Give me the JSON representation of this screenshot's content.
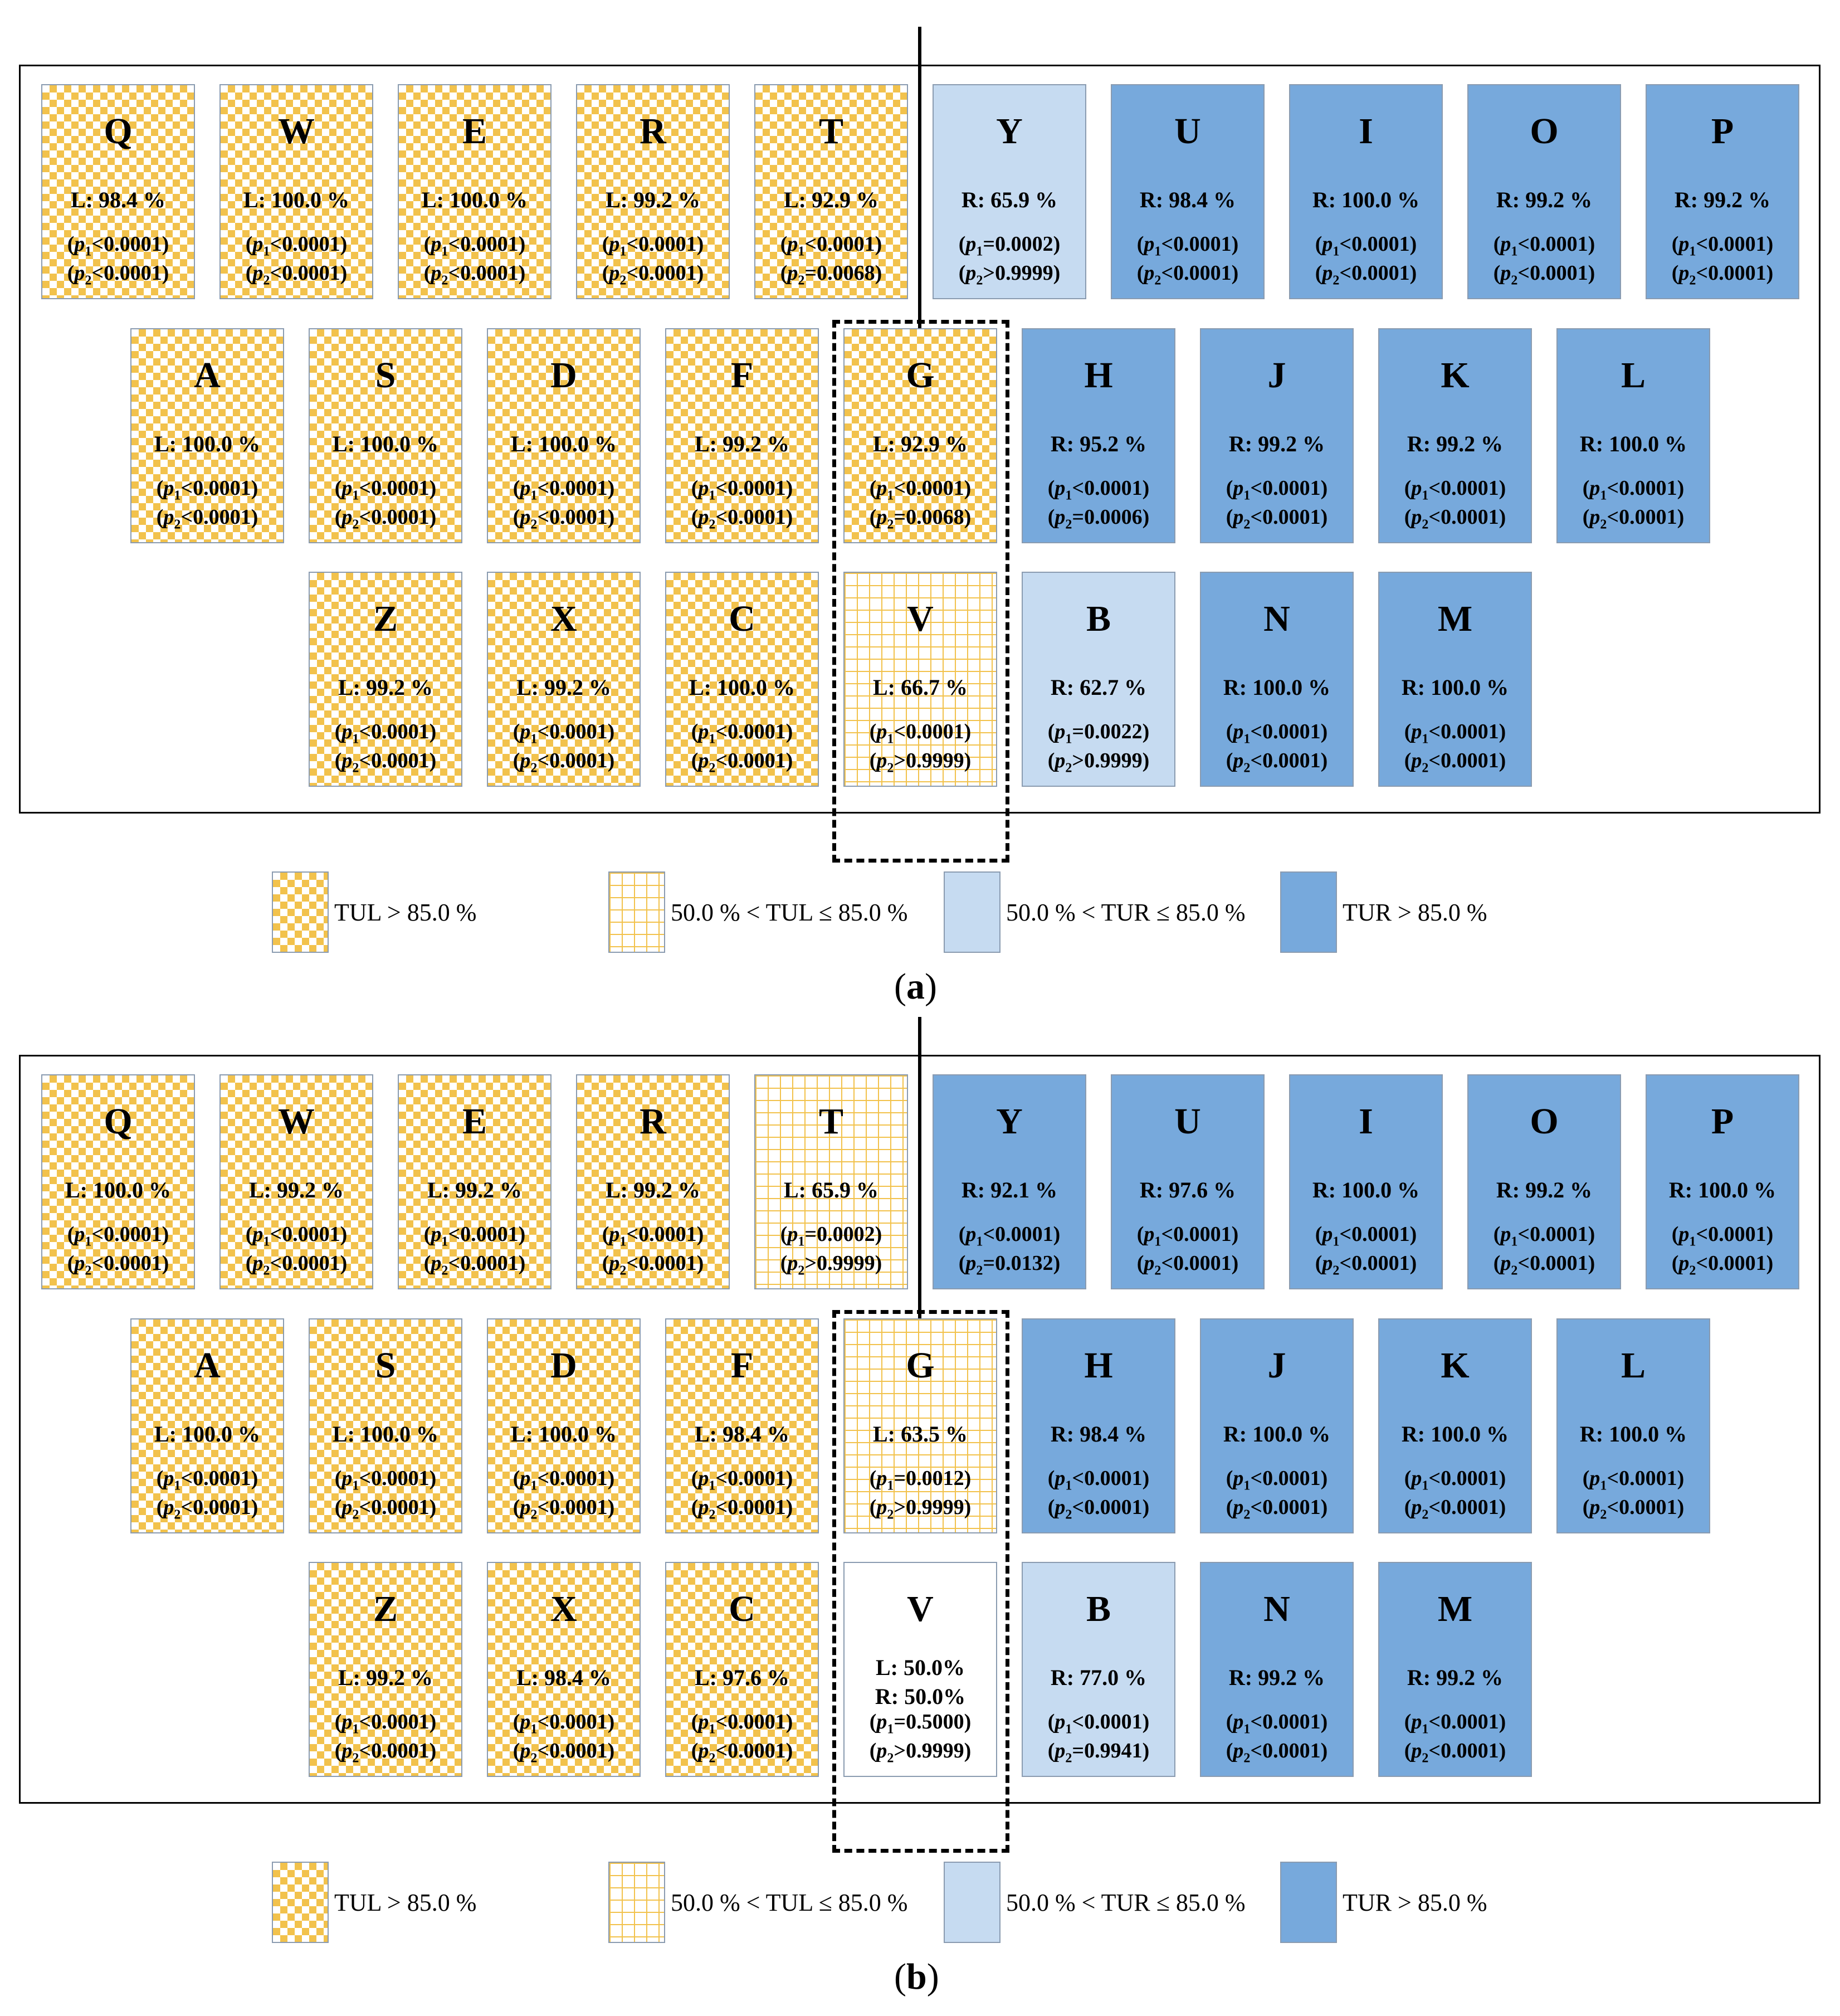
{
  "colors": {
    "tul_high": "#f2c24c",
    "tul_mid": "#f2c24c",
    "tur_mid": "#c6dbf1",
    "tur_high": "#77a9dc"
  },
  "legend": [
    {
      "label": "TUL > 85.0 %",
      "style": "tul-high"
    },
    {
      "label": "50.0 % < TUL ≤ 85.0 %",
      "style": "tul-mid"
    },
    {
      "label": "50.0 % < TUR ≤ 85.0 %",
      "style": "tur-mid"
    },
    {
      "label": "TUR > 85.0 %",
      "style": "tur-high"
    }
  ],
  "panels": [
    {
      "label": "a",
      "keys": [
        {
          "letter": "Q",
          "style": "tul-high",
          "pct": "L: 98.4 %",
          "p1_op": "<",
          "p1_val": "0.0001",
          "p2_op": "<",
          "p2_val": "0.0001"
        },
        {
          "letter": "W",
          "style": "tul-high",
          "pct": "L: 100.0 %",
          "p1_op": "<",
          "p1_val": "0.0001",
          "p2_op": "<",
          "p2_val": "0.0001"
        },
        {
          "letter": "E",
          "style": "tul-high",
          "pct": "L: 100.0 %",
          "p1_op": "<",
          "p1_val": "0.0001",
          "p2_op": "<",
          "p2_val": "0.0001"
        },
        {
          "letter": "R",
          "style": "tul-high",
          "pct": "L: 99.2 %",
          "p1_op": "<",
          "p1_val": "0.0001",
          "p2_op": "<",
          "p2_val": "0.0001"
        },
        {
          "letter": "T",
          "style": "tul-high",
          "pct": "L: 92.9 %",
          "p1_op": "<",
          "p1_val": "0.0001",
          "p2_op": "=",
          "p2_val": "0.0068"
        },
        {
          "letter": "Y",
          "style": "tur-mid",
          "pct": "R: 65.9 %",
          "p1_op": "=",
          "p1_val": "0.0002",
          "p2_op": ">",
          "p2_val": "0.9999"
        },
        {
          "letter": "U",
          "style": "tur-high",
          "pct": "R: 98.4 %",
          "p1_op": "<",
          "p1_val": "0.0001",
          "p2_op": "<",
          "p2_val": "0.0001"
        },
        {
          "letter": "I",
          "style": "tur-high",
          "pct": "R: 100.0 %",
          "p1_op": "<",
          "p1_val": "0.0001",
          "p2_op": "<",
          "p2_val": "0.0001"
        },
        {
          "letter": "O",
          "style": "tur-high",
          "pct": "R: 99.2 %",
          "p1_op": "<",
          "p1_val": "0.0001",
          "p2_op": "<",
          "p2_val": "0.0001"
        },
        {
          "letter": "P",
          "style": "tur-high",
          "pct": "R: 99.2 %",
          "p1_op": "<",
          "p1_val": "0.0001",
          "p2_op": "<",
          "p2_val": "0.0001"
        },
        {
          "letter": "A",
          "style": "tul-high",
          "pct": "L: 100.0 %",
          "p1_op": "<",
          "p1_val": "0.0001",
          "p2_op": "<",
          "p2_val": "0.0001"
        },
        {
          "letter": "S",
          "style": "tul-high",
          "pct": "L: 100.0 %",
          "p1_op": "<",
          "p1_val": "0.0001",
          "p2_op": "<",
          "p2_val": "0.0001"
        },
        {
          "letter": "D",
          "style": "tul-high",
          "pct": "L: 100.0 %",
          "p1_op": "<",
          "p1_val": "0.0001",
          "p2_op": "<",
          "p2_val": "0.0001"
        },
        {
          "letter": "F",
          "style": "tul-high",
          "pct": "L: 99.2 %",
          "p1_op": "<",
          "p1_val": "0.0001",
          "p2_op": "<",
          "p2_val": "0.0001"
        },
        {
          "letter": "G",
          "style": "tul-high",
          "pct": "L: 92.9 %",
          "p1_op": "<",
          "p1_val": "0.0001",
          "p2_op": "=",
          "p2_val": "0.0068"
        },
        {
          "letter": "H",
          "style": "tur-high",
          "pct": "R: 95.2 %",
          "p1_op": "<",
          "p1_val": "0.0001",
          "p2_op": "=",
          "p2_val": "0.0006"
        },
        {
          "letter": "J",
          "style": "tur-high",
          "pct": "R: 99.2 %",
          "p1_op": "<",
          "p1_val": "0.0001",
          "p2_op": "<",
          "p2_val": "0.0001"
        },
        {
          "letter": "K",
          "style": "tur-high",
          "pct": "R: 99.2 %",
          "p1_op": "<",
          "p1_val": "0.0001",
          "p2_op": "<",
          "p2_val": "0.0001"
        },
        {
          "letter": "L",
          "style": "tur-high",
          "pct": "R: 100.0 %",
          "p1_op": "<",
          "p1_val": "0.0001",
          "p2_op": "<",
          "p2_val": "0.0001"
        },
        {
          "letter": "Z",
          "style": "tul-high",
          "pct": "L: 99.2 %",
          "p1_op": "<",
          "p1_val": "0.0001",
          "p2_op": "<",
          "p2_val": "0.0001"
        },
        {
          "letter": "X",
          "style": "tul-high",
          "pct": "L: 99.2 %",
          "p1_op": "<",
          "p1_val": "0.0001",
          "p2_op": "<",
          "p2_val": "0.0001"
        },
        {
          "letter": "C",
          "style": "tul-high",
          "pct": "L: 100.0 %",
          "p1_op": "<",
          "p1_val": "0.0001",
          "p2_op": "<",
          "p2_val": "0.0001"
        },
        {
          "letter": "V",
          "style": "tul-mid",
          "pct": "L: 66.7 %",
          "p1_op": "<",
          "p1_val": "0.0001",
          "p2_op": ">",
          "p2_val": "0.9999"
        },
        {
          "letter": "B",
          "style": "tur-mid",
          "pct": "R: 62.7 %",
          "p1_op": "=",
          "p1_val": "0.0022",
          "p2_op": ">",
          "p2_val": "0.9999"
        },
        {
          "letter": "N",
          "style": "tur-high",
          "pct": "R: 100.0 %",
          "p1_op": "<",
          "p1_val": "0.0001",
          "p2_op": "<",
          "p2_val": "0.0001"
        },
        {
          "letter": "M",
          "style": "tur-high",
          "pct": "R: 100.0 %",
          "p1_op": "<",
          "p1_val": "0.0001",
          "p2_op": "<",
          "p2_val": "0.0001"
        }
      ]
    },
    {
      "label": "b",
      "keys": [
        {
          "letter": "Q",
          "style": "tul-high",
          "pct": "L: 100.0 %",
          "p1_op": "<",
          "p1_val": "0.0001",
          "p2_op": "<",
          "p2_val": "0.0001"
        },
        {
          "letter": "W",
          "style": "tul-high",
          "pct": "L: 99.2 %",
          "p1_op": "<",
          "p1_val": "0.0001",
          "p2_op": "<",
          "p2_val": "0.0001"
        },
        {
          "letter": "E",
          "style": "tul-high",
          "pct": "L: 99.2 %",
          "p1_op": "<",
          "p1_val": "0.0001",
          "p2_op": "<",
          "p2_val": "0.0001"
        },
        {
          "letter": "R",
          "style": "tul-high",
          "pct": "L: 99.2 %",
          "p1_op": "<",
          "p1_val": "0.0001",
          "p2_op": "<",
          "p2_val": "0.0001"
        },
        {
          "letter": "T",
          "style": "tul-mid",
          "pct": "L: 65.9 %",
          "p1_op": "=",
          "p1_val": "0.0002",
          "p2_op": ">",
          "p2_val": "0.9999"
        },
        {
          "letter": "Y",
          "style": "tur-high",
          "pct": "R: 92.1 %",
          "p1_op": "<",
          "p1_val": "0.0001",
          "p2_op": "=",
          "p2_val": "0.0132"
        },
        {
          "letter": "U",
          "style": "tur-high",
          "pct": "R: 97.6 %",
          "p1_op": "<",
          "p1_val": "0.0001",
          "p2_op": "<",
          "p2_val": "0.0001"
        },
        {
          "letter": "I",
          "style": "tur-high",
          "pct": "R: 100.0 %",
          "p1_op": "<",
          "p1_val": "0.0001",
          "p2_op": "<",
          "p2_val": "0.0001"
        },
        {
          "letter": "O",
          "style": "tur-high",
          "pct": "R: 99.2 %",
          "p1_op": "<",
          "p1_val": "0.0001",
          "p2_op": "<",
          "p2_val": "0.0001"
        },
        {
          "letter": "P",
          "style": "tur-high",
          "pct": "R: 100.0 %",
          "p1_op": "<",
          "p1_val": "0.0001",
          "p2_op": "<",
          "p2_val": "0.0001"
        },
        {
          "letter": "A",
          "style": "tul-high",
          "pct": "L: 100.0 %",
          "p1_op": "<",
          "p1_val": "0.0001",
          "p2_op": "<",
          "p2_val": "0.0001"
        },
        {
          "letter": "S",
          "style": "tul-high",
          "pct": "L: 100.0 %",
          "p1_op": "<",
          "p1_val": "0.0001",
          "p2_op": "<",
          "p2_val": "0.0001"
        },
        {
          "letter": "D",
          "style": "tul-high",
          "pct": "L: 100.0 %",
          "p1_op": "<",
          "p1_val": "0.0001",
          "p2_op": "<",
          "p2_val": "0.0001"
        },
        {
          "letter": "F",
          "style": "tul-high",
          "pct": "L: 98.4 %",
          "p1_op": "<",
          "p1_val": "0.0001",
          "p2_op": "<",
          "p2_val": "0.0001"
        },
        {
          "letter": "G",
          "style": "tul-mid",
          "pct": "L: 63.5 %",
          "p1_op": "=",
          "p1_val": "0.0012",
          "p2_op": ">",
          "p2_val": "0.9999"
        },
        {
          "letter": "H",
          "style": "tur-high",
          "pct": "R: 98.4 %",
          "p1_op": "<",
          "p1_val": "0.0001",
          "p2_op": "<",
          "p2_val": "0.0001"
        },
        {
          "letter": "J",
          "style": "tur-high",
          "pct": "R: 100.0 %",
          "p1_op": "<",
          "p1_val": "0.0001",
          "p2_op": "<",
          "p2_val": "0.0001"
        },
        {
          "letter": "K",
          "style": "tur-high",
          "pct": "R: 100.0 %",
          "p1_op": "<",
          "p1_val": "0.0001",
          "p2_op": "<",
          "p2_val": "0.0001"
        },
        {
          "letter": "L",
          "style": "tur-high",
          "pct": "R: 100.0 %",
          "p1_op": "<",
          "p1_val": "0.0001",
          "p2_op": "<",
          "p2_val": "0.0001"
        },
        {
          "letter": "Z",
          "style": "tul-high",
          "pct": "L: 99.2 %",
          "p1_op": "<",
          "p1_val": "0.0001",
          "p2_op": "<",
          "p2_val": "0.0001"
        },
        {
          "letter": "X",
          "style": "tul-high",
          "pct": "L: 98.4 %",
          "p1_op": "<",
          "p1_val": "0.0001",
          "p2_op": "<",
          "p2_val": "0.0001"
        },
        {
          "letter": "C",
          "style": "tul-high",
          "pct": "L: 97.6 %",
          "p1_op": "<",
          "p1_val": "0.0001",
          "p2_op": "<",
          "p2_val": "0.0001"
        },
        {
          "letter": "V",
          "style": "neutral",
          "pct": "L: 50.0%",
          "pct2": "R: 50.0%",
          "p1_op": "=",
          "p1_val": "0.5000",
          "p2_op": ">",
          "p2_val": "0.9999"
        },
        {
          "letter": "B",
          "style": "tur-mid",
          "pct": "R: 77.0 %",
          "p1_op": "<",
          "p1_val": "0.0001",
          "p2_op": "=",
          "p2_val": "0.9941"
        },
        {
          "letter": "N",
          "style": "tur-high",
          "pct": "R: 99.2 %",
          "p1_op": "<",
          "p1_val": "0.0001",
          "p2_op": "<",
          "p2_val": "0.0001"
        },
        {
          "letter": "M",
          "style": "tur-high",
          "pct": "R: 99.2 %",
          "p1_op": "<",
          "p1_val": "0.0001",
          "p2_op": "<",
          "p2_val": "0.0001"
        }
      ]
    }
  ]
}
